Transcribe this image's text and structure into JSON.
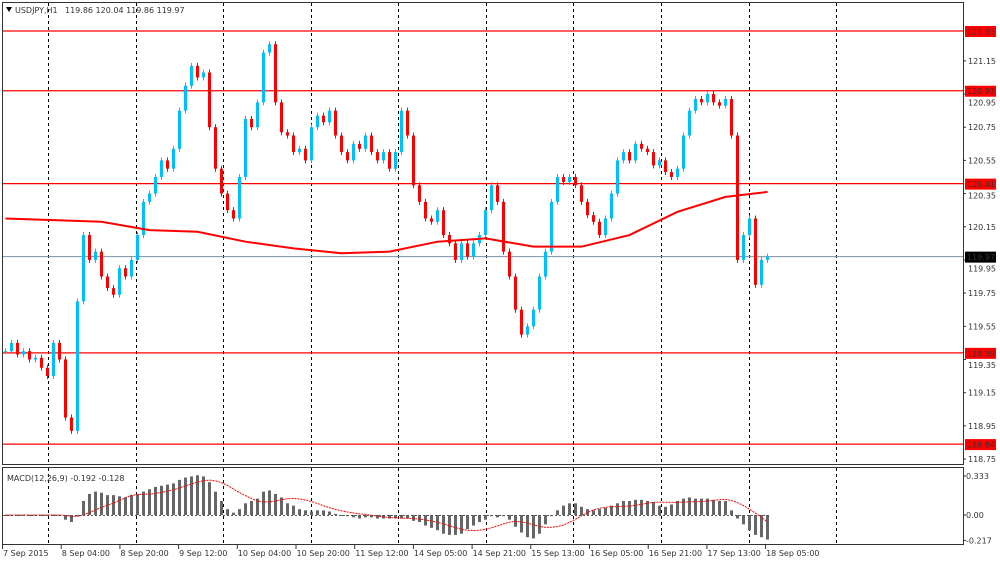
{
  "header": {
    "symbol": "USDJPY,H1",
    "ohlc": "119.86 120.04 119.86 119.97"
  },
  "colors": {
    "bull": "#00bfff",
    "bear": "#ff0000",
    "level": "#ff0000",
    "current_line": "#7a8fa8",
    "ma": "#ff0000",
    "macd_hist": "#666666",
    "macd_signal": "#ff0000"
  },
  "chart_data": [
    {
      "type": "candlestick",
      "title": "USDJPY,H1",
      "y_ticks": [
        "121.15",
        "120.95",
        "120.75",
        "120.55",
        "120.35",
        "120.15",
        "119.95",
        "119.75",
        "119.55",
        "119.35",
        "119.15",
        "118.95",
        "118.75"
      ],
      "ylim": [
        118.7,
        121.5
      ],
      "x_tick_labels": [
        "7 Sep 2015",
        "8 Sep 04:00",
        "8 Sep 20:00",
        "9 Sep 12:00",
        "10 Sep 04:00",
        "10 Sep 20:00",
        "11 Sep 12:00",
        "14 Sep 05:00",
        "14 Sep 21:00",
        "15 Sep 13:00",
        "16 Sep 05:00",
        "16 Sep 21:00",
        "17 Sep 13:00",
        "18 Sep 05:00"
      ],
      "levels": [
        "121.33",
        "120.97",
        "120.41",
        "119.39",
        "118.84"
      ],
      "current_price": "119.97",
      "grid": "vertical-dashed",
      "closes": [
        119.4,
        119.45,
        119.38,
        119.4,
        119.35,
        119.36,
        119.3,
        119.25,
        119.45,
        119.35,
        119.0,
        118.92,
        119.7,
        120.1,
        119.95,
        120.0,
        119.85,
        119.78,
        119.74,
        119.9,
        119.85,
        119.95,
        120.1,
        120.3,
        120.35,
        120.45,
        120.55,
        120.5,
        120.62,
        120.85,
        121.0,
        121.12,
        121.05,
        121.08,
        120.75,
        120.5,
        120.35,
        120.25,
        120.2,
        120.45,
        120.8,
        120.75,
        120.9,
        121.2,
        121.25,
        120.9,
        120.72,
        120.7,
        120.6,
        120.62,
        120.55,
        120.75,
        120.82,
        120.78,
        120.85,
        120.7,
        120.6,
        120.55,
        120.65,
        120.62,
        120.7,
        120.6,
        120.55,
        120.6,
        120.5,
        120.6,
        120.85,
        120.7,
        120.4,
        120.3,
        120.2,
        120.18,
        120.25,
        120.1,
        120.05,
        119.95,
        120.05,
        119.97,
        120.05,
        120.1,
        120.25,
        120.4,
        120.3,
        120.0,
        119.85,
        119.65,
        119.5,
        119.55,
        119.65,
        119.85,
        120.0,
        120.3,
        120.45,
        120.42,
        120.45,
        120.4,
        120.3,
        120.22,
        120.18,
        120.1,
        120.2,
        120.35,
        120.55,
        120.6,
        120.55,
        120.65,
        120.62,
        120.6,
        120.52,
        120.55,
        120.48,
        120.45,
        120.5,
        120.7,
        120.85,
        120.92,
        120.9,
        120.95,
        120.9,
        120.88,
        120.92,
        120.7,
        119.95,
        120.1,
        120.2,
        119.8,
        119.95,
        119.97
      ],
      "moving_average": [
        120.2,
        120.19,
        120.18,
        120.13,
        120.12,
        120.06,
        120.02,
        119.99,
        120.0,
        120.06,
        120.08,
        120.03,
        120.03,
        120.1,
        120.24,
        120.33,
        120.36
      ]
    },
    {
      "type": "bar",
      "title": "MACD(12,26,9) -0.192 -0.128",
      "y_ticks": [
        "0.333",
        "0.00",
        "-0.217"
      ],
      "ylim": [
        -0.217,
        0.333
      ],
      "histogram": [
        0,
        0,
        0,
        0,
        0,
        0,
        0,
        0,
        0,
        0,
        -0.04,
        -0.06,
        -0.01,
        0.12,
        0.18,
        0.2,
        0.19,
        0.17,
        0.17,
        0.16,
        0.15,
        0.17,
        0.18,
        0.2,
        0.22,
        0.24,
        0.25,
        0.26,
        0.27,
        0.3,
        0.32,
        0.33,
        0.34,
        0.33,
        0.28,
        0.2,
        0.12,
        0.05,
        0.02,
        0.05,
        0.1,
        0.12,
        0.14,
        0.2,
        0.21,
        0.18,
        0.15,
        0.1,
        0.08,
        0.05,
        0.04,
        0.03,
        0.04,
        0.04,
        0.03,
        0.01,
        0.0,
        -0.01,
        -0.02,
        -0.03,
        -0.02,
        -0.02,
        -0.03,
        -0.03,
        -0.03,
        -0.03,
        -0.03,
        -0.03,
        -0.05,
        -0.06,
        -0.09,
        -0.11,
        -0.13,
        -0.16,
        -0.17,
        -0.17,
        -0.16,
        -0.12,
        -0.09,
        -0.06,
        -0.04,
        -0.01,
        -0.02,
        -0.01,
        -0.04,
        -0.1,
        -0.15,
        -0.19,
        -0.2,
        -0.16,
        -0.08,
        -0.01,
        0.04,
        0.08,
        0.1,
        0.1,
        0.07,
        0.05,
        0.04,
        0.05,
        0.06,
        0.08,
        0.1,
        0.12,
        0.12,
        0.13,
        0.13,
        0.12,
        0.11,
        0.08,
        0.07,
        0.09,
        0.12,
        0.14,
        0.15,
        0.14,
        0.14,
        0.14,
        0.13,
        0.12,
        0.12,
        0.04,
        -0.03,
        -0.08,
        -0.13,
        -0.17,
        -0.19,
        -0.21
      ]
    }
  ]
}
